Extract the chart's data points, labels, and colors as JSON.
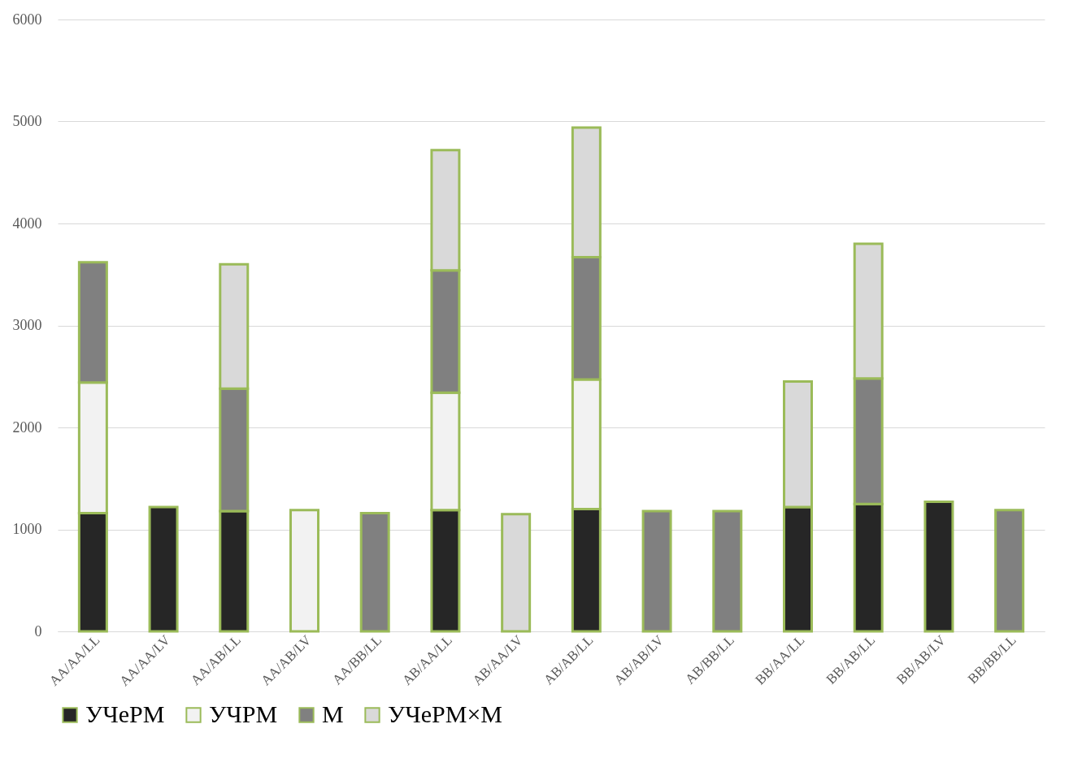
{
  "chart_data": {
    "type": "bar",
    "stacked": true,
    "categories": [
      "AA/AA/LL",
      "AA/AA/LV",
      "AA/AB/LL",
      "AA/AB/LV",
      "AA/BB/LL",
      "AB/AA/LL",
      "AB/AA/LV",
      "AB/AB/LL",
      "AB/AB/LV",
      "AB/BB/LL",
      "BB/AA/LL",
      "BB/AB/LL",
      "BB/AB/LV",
      "BB/BB/LL"
    ],
    "series": [
      {
        "name": "УЧеРМ",
        "color": "#262626",
        "values": [
          1160,
          1220,
          1180,
          null,
          null,
          1190,
          null,
          1200,
          null,
          null,
          1220,
          1250,
          1270,
          null
        ]
      },
      {
        "name": "УЧРМ",
        "color": "#f2f2f2",
        "values": [
          1280,
          null,
          null,
          1190,
          null,
          1150,
          null,
          1270,
          null,
          null,
          null,
          null,
          null,
          null
        ]
      },
      {
        "name": "М",
        "color": "#808080",
        "values": [
          1180,
          null,
          1200,
          null,
          1160,
          1200,
          null,
          1200,
          1180,
          1180,
          null,
          1230,
          null,
          1190
        ]
      },
      {
        "name": "УЧеРМ×М",
        "color": "#d9d9d9",
        "values": [
          null,
          null,
          1220,
          null,
          null,
          1180,
          1150,
          1270,
          null,
          null,
          1230,
          1320,
          null,
          null
        ]
      }
    ],
    "ylim": [
      0,
      6000
    ],
    "yticks": [
      0,
      1000,
      2000,
      3000,
      4000,
      5000,
      6000
    ],
    "grid": "y",
    "legend": "bottom"
  }
}
